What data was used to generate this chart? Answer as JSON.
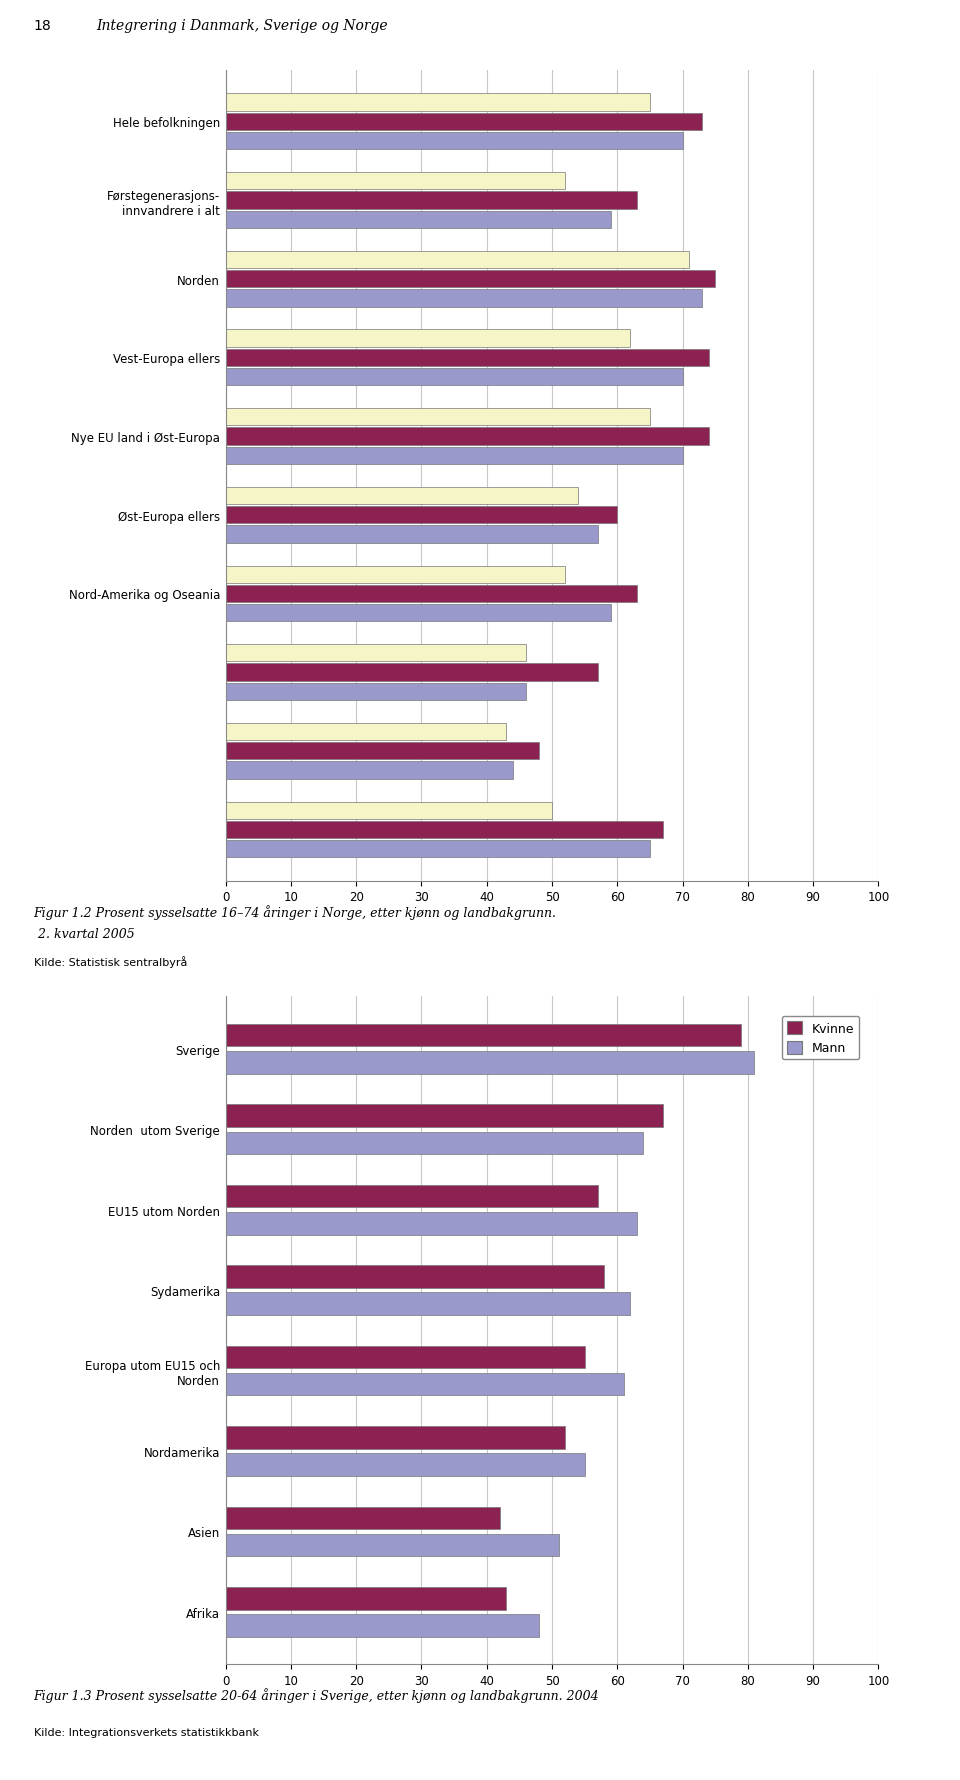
{
  "page_header_num": "18",
  "page_header_text": "Integrering i Danmark, Sverige og Norge",
  "chart1": {
    "categories": [
      "Hele befolkningen",
      "Førstegenerasjons-\ninnvandrere i alt",
      "Norden",
      "Vest-Europa ellers",
      "Nye EU land i Øst-Europa",
      "Øst-Europa ellers",
      "Nord-Amerika og Oseania",
      "",
      "",
      ""
    ],
    "begge": [
      65,
      52,
      71,
      62,
      65,
      54,
      52,
      46,
      43,
      50
    ],
    "kvinne": [
      73,
      63,
      75,
      74,
      74,
      60,
      63,
      57,
      48,
      67
    ],
    "mann": [
      70,
      59,
      73,
      70,
      70,
      57,
      59,
      46,
      44,
      65
    ],
    "bar_colors": [
      "#f5f5c8",
      "#8b2252",
      "#9999cc"
    ],
    "xlim": [
      0,
      100
    ],
    "xticks": [
      0,
      10,
      20,
      30,
      40,
      50,
      60,
      70,
      80,
      90,
      100
    ],
    "caption_line1": "Figur 1.2 Prosent sysselsatte 16–74 åringer i Norge, etter kjønn og landbakgrunn.",
    "caption_line2": " 2. kvartal 2005",
    "source": "Kilde: Statistisk sentralbyrå"
  },
  "chart2": {
    "categories": [
      "Sverige",
      "Norden  utom Sverige",
      "EU15 utom Norden",
      "Sydamerika",
      "Europa utom EU15 och\nNorden",
      "Nordamerika",
      "Asien",
      "Afrika"
    ],
    "kvinne": [
      79,
      67,
      57,
      58,
      55,
      52,
      42,
      43
    ],
    "mann": [
      81,
      64,
      63,
      62,
      61,
      55,
      51,
      48
    ],
    "bar_colors": [
      "#8b2252",
      "#9999cc"
    ],
    "xlim": [
      0,
      100
    ],
    "xticks": [
      0,
      10,
      20,
      30,
      40,
      50,
      60,
      70,
      80,
      90,
      100
    ],
    "legend_labels": [
      "Kvinne",
      "Mann"
    ],
    "caption": "Figur 1.3 Prosent sysselsatte 20-64 åringer i Sverige, etter kjønn og landbakgrunn. 2004",
    "source": "Kilde: Integrationsverkets statistikkbank"
  },
  "figure_bg": "#ffffff",
  "chart_bg": "#ffffff",
  "grid_color": "#c8c8c8"
}
